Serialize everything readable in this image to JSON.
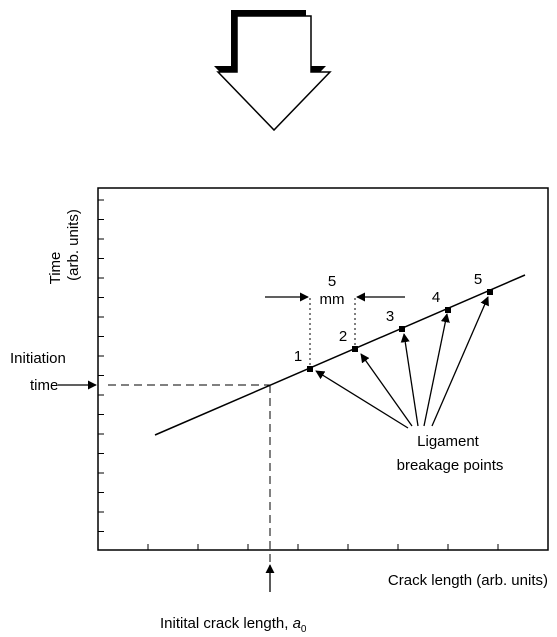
{
  "axes": {
    "y_label": [
      "Time",
      "(arb. units)"
    ],
    "x_label": "Crack length (arb. units)"
  },
  "annotations": {
    "initiation": [
      "Initiation",
      "time"
    ],
    "initial_crack": "Initital crack length, ",
    "initial_crack_symbol": "a",
    "initial_crack_subscript": "0",
    "spacing": [
      "5",
      "mm"
    ],
    "ligament": [
      "Ligament",
      "breakage points"
    ]
  },
  "points": [
    {
      "label": "1"
    },
    {
      "label": "2"
    },
    {
      "label": "3"
    },
    {
      "label": "4"
    },
    {
      "label": "5"
    }
  ]
}
